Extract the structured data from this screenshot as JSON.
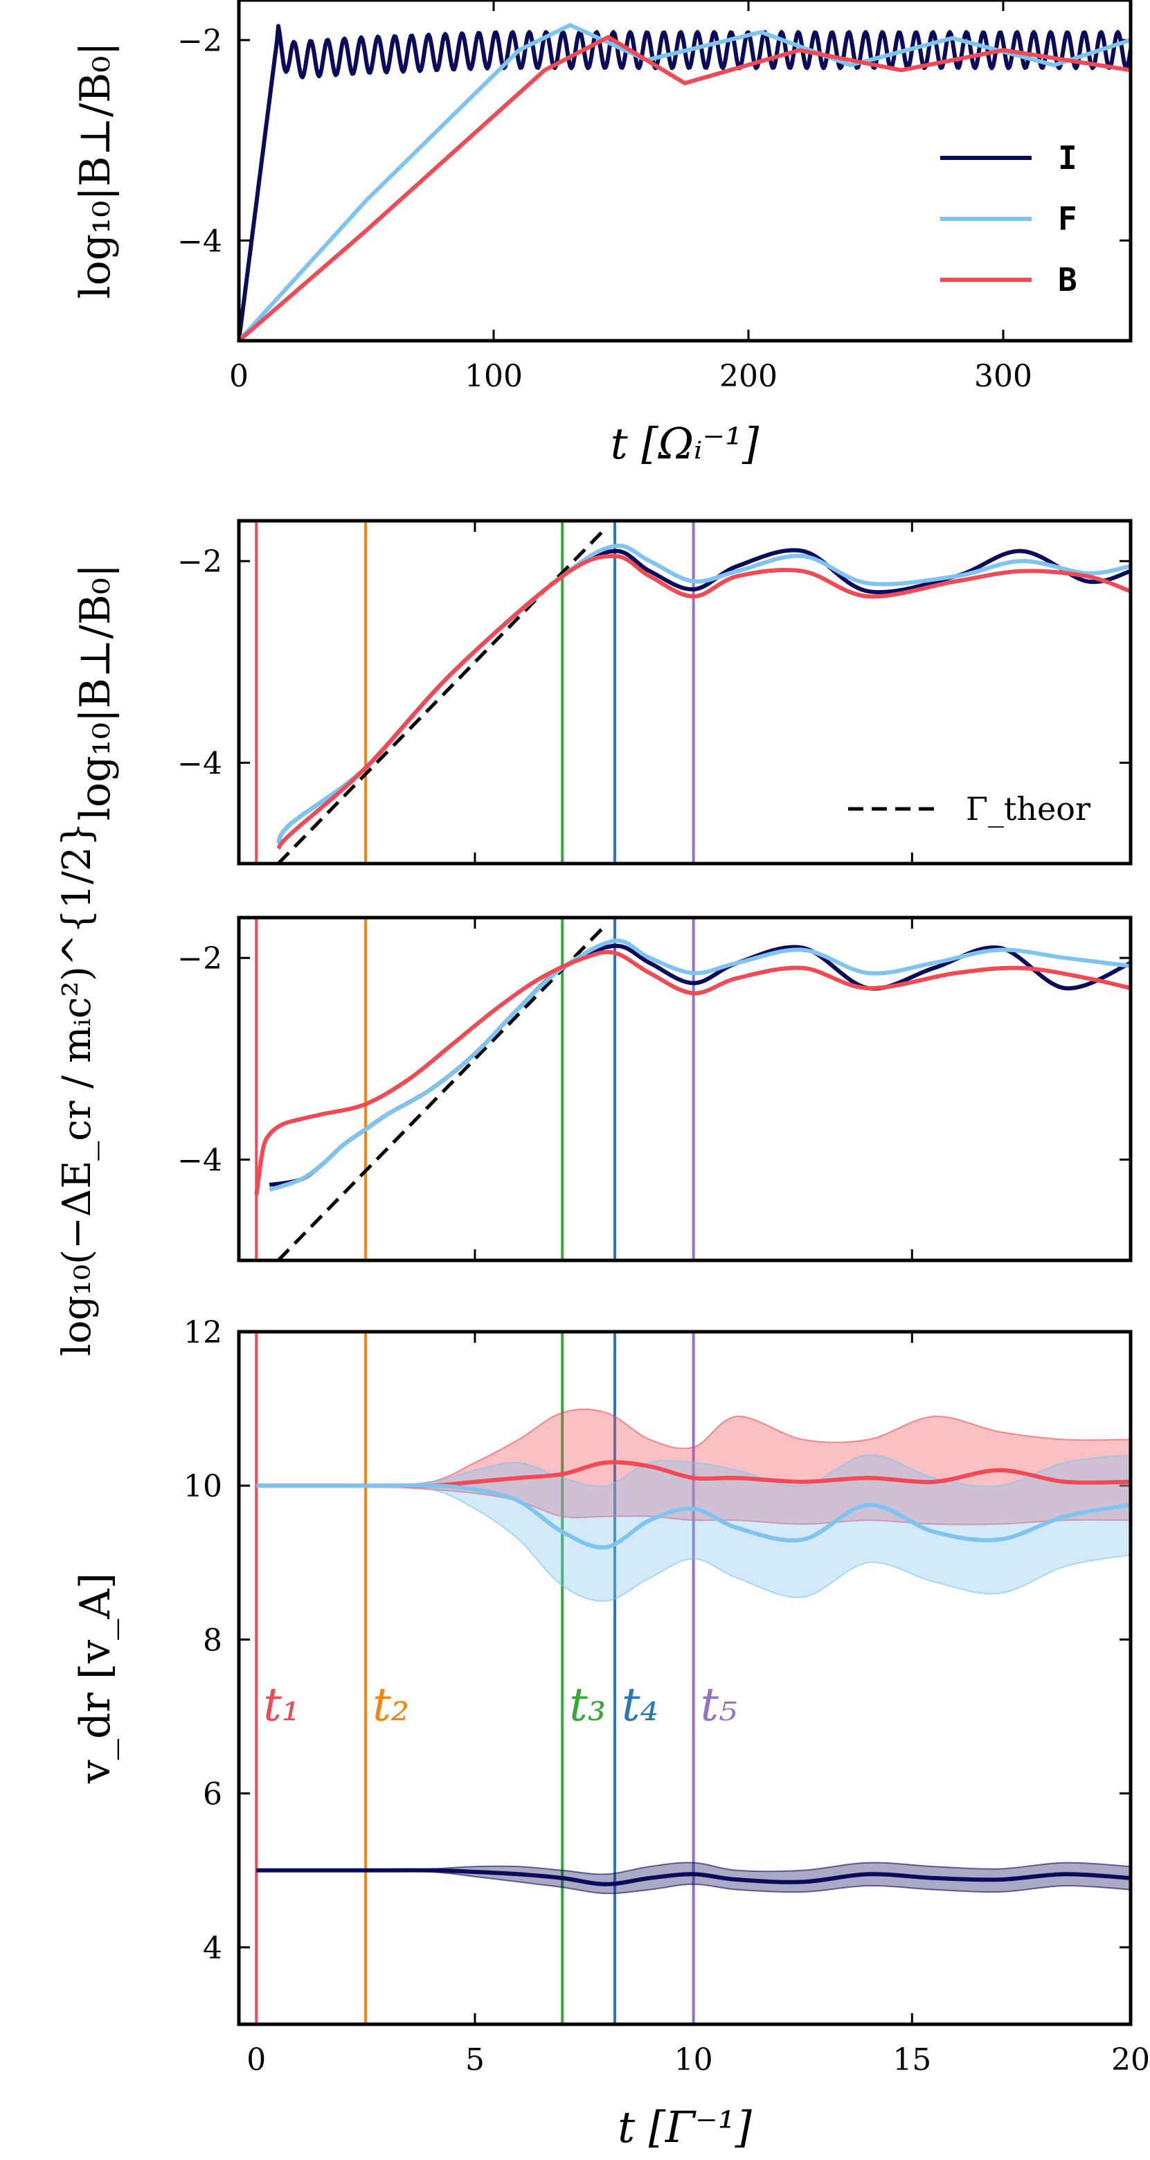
{
  "colors": {
    "I": "#0b0b5c",
    "F": "#7fc4f0",
    "B": "#f24a55",
    "t1": "#f24a55",
    "t2": "#f7830f",
    "t3": "#36a83a",
    "t4": "#2b78b3",
    "t5": "#9273c4",
    "theory": "#000000"
  },
  "chart_data": [
    {
      "type": "line",
      "panel": "top",
      "ylabel": "log₁₀|B⊥/B₀|",
      "xlabel": "t  [Ωᵢ⁻¹]",
      "xlim": [
        0,
        350
      ],
      "ylim": [
        -5,
        -1.6
      ],
      "xticks": [
        "0",
        "100",
        "200",
        "300"
      ],
      "yticks": [
        "−4",
        "−2"
      ],
      "legend": {
        "placement": "right",
        "entries": [
          "I",
          "F",
          "B"
        ]
      },
      "series": [
        {
          "name": "I",
          "x": [
            0,
            15,
            20,
            50,
            100,
            150,
            200,
            250,
            300,
            350
          ],
          "y": [
            -5,
            -2.0,
            -2.2,
            -2.15,
            -2.1,
            -2.1,
            -2.1,
            -2.1,
            -2.1,
            -2.1
          ]
        },
        {
          "name": "F",
          "x": [
            0,
            50,
            110,
            130,
            160,
            205,
            240,
            280,
            320,
            350
          ],
          "y": [
            -5,
            -3.6,
            -2.1,
            -1.85,
            -2.2,
            -1.92,
            -2.25,
            -1.98,
            -2.25,
            -2.0
          ]
        },
        {
          "name": "B",
          "x": [
            0,
            50,
            120,
            145,
            160,
            175,
            220,
            260,
            300,
            350
          ],
          "y": [
            -5,
            -3.9,
            -2.3,
            -1.97,
            -2.2,
            -2.43,
            -2.1,
            -2.3,
            -2.1,
            -2.3
          ]
        }
      ]
    },
    {
      "type": "line",
      "panel": "middle-1",
      "ylabel": "log₁₀|B⊥/B₀|",
      "xlim": [
        -0.4,
        20
      ],
      "ylim": [
        -5,
        -1.6
      ],
      "yticks": [
        "−4",
        "−2"
      ],
      "legend": {
        "placement": "bottom-right",
        "entries": [
          "Γ_theor"
        ]
      },
      "theory": {
        "x": [
          0.5,
          8.0
        ],
        "y": [
          -5.0,
          -1.67
        ]
      },
      "series": [
        {
          "name": "I",
          "x": [
            0.5,
            0.8,
            2.5,
            4.5,
            7.0,
            8.2,
            9.0,
            10.0,
            11.0,
            12.5,
            14.0,
            16.0,
            17.5,
            19.0,
            20.0
          ],
          "y": [
            -4.8,
            -4.6,
            -4.05,
            -3.1,
            -2.15,
            -1.9,
            -2.1,
            -2.28,
            -2.05,
            -1.9,
            -2.3,
            -2.15,
            -1.9,
            -2.2,
            -2.1
          ]
        },
        {
          "name": "F",
          "x": [
            0.5,
            0.8,
            2.5,
            4.5,
            7.0,
            8.2,
            9.0,
            10.0,
            11.0,
            12.5,
            14.0,
            16.0,
            17.5,
            19.0,
            20.0
          ],
          "y": [
            -4.8,
            -4.6,
            -4.05,
            -3.1,
            -2.15,
            -1.85,
            -2.0,
            -2.2,
            -2.1,
            -1.95,
            -2.22,
            -2.15,
            -2.0,
            -2.12,
            -2.05
          ]
        },
        {
          "name": "B",
          "x": [
            0.5,
            0.8,
            2.5,
            4.5,
            7.0,
            8.2,
            9.0,
            10.0,
            11.0,
            12.5,
            14.0,
            16.0,
            17.5,
            19.0,
            20.0
          ],
          "y": [
            -4.85,
            -4.7,
            -4.05,
            -3.1,
            -2.15,
            -1.95,
            -2.15,
            -2.35,
            -2.15,
            -2.1,
            -2.35,
            -2.2,
            -2.1,
            -2.15,
            -2.3
          ]
        }
      ]
    },
    {
      "type": "line",
      "panel": "middle-2",
      "ylabel": "log₁₀(−ΔE_cr / mᵢc²)^{1/2}",
      "xlim": [
        -0.4,
        20
      ],
      "ylim": [
        -5,
        -1.6
      ],
      "yticks": [
        "−4",
        "−2"
      ],
      "theory": {
        "x": [
          0.5,
          8.0
        ],
        "y": [
          -5.0,
          -1.67
        ]
      },
      "series": [
        {
          "name": "I",
          "x": [
            0.3,
            1.0,
            1.5,
            2.0,
            2.5,
            3.0,
            4.0,
            5.0,
            6.0,
            7.0,
            8.2,
            9.0,
            10.0,
            11.0,
            12.5,
            14.0,
            15.5,
            17.0,
            18.5,
            20.0
          ],
          "y": [
            -4.25,
            -4.2,
            -4.05,
            -3.85,
            -3.7,
            -3.55,
            -3.3,
            -2.95,
            -2.5,
            -2.1,
            -1.88,
            -2.05,
            -2.25,
            -2.05,
            -1.9,
            -2.3,
            -2.1,
            -1.9,
            -2.3,
            -2.05
          ]
        },
        {
          "name": "F",
          "x": [
            0.3,
            1.0,
            1.5,
            2.0,
            2.5,
            3.0,
            4.0,
            5.0,
            6.0,
            7.0,
            8.2,
            9.0,
            10.0,
            11.0,
            12.5,
            14.0,
            15.5,
            17.0,
            18.5,
            20.0
          ],
          "y": [
            -4.3,
            -4.2,
            -4.05,
            -3.85,
            -3.7,
            -3.55,
            -3.3,
            -2.95,
            -2.5,
            -2.1,
            -1.83,
            -2.0,
            -2.15,
            -2.05,
            -1.92,
            -2.15,
            -2.05,
            -1.92,
            -2.0,
            -2.08
          ]
        },
        {
          "name": "B",
          "x": [
            0.0,
            0.15,
            0.3,
            0.6,
            1.0,
            1.5,
            2.5,
            3.5,
            4.5,
            5.5,
            6.5,
            7.5,
            8.2,
            9.0,
            10.0,
            11.0,
            12.5,
            14.0,
            16.0,
            17.5,
            19.0,
            20.0
          ],
          "y": [
            -4.35,
            -3.9,
            -3.75,
            -3.65,
            -3.6,
            -3.55,
            -3.45,
            -3.2,
            -2.85,
            -2.5,
            -2.2,
            -2.0,
            -1.95,
            -2.15,
            -2.35,
            -2.2,
            -2.1,
            -2.3,
            -2.15,
            -2.1,
            -2.2,
            -2.3
          ]
        }
      ]
    },
    {
      "type": "area",
      "panel": "bottom",
      "ylabel": "v_dr  [v_A]",
      "xlabel": "t  [Γ⁻¹]",
      "xlim": [
        -0.4,
        20
      ],
      "ylim": [
        3,
        12
      ],
      "xticks": [
        "0",
        "5",
        "10",
        "15",
        "20"
      ],
      "yticks": [
        "4",
        "6",
        "8",
        "10",
        "12"
      ],
      "series": [
        {
          "name": "B",
          "x": [
            0,
            2.5,
            4.0,
            5.0,
            6.0,
            7.0,
            8.0,
            9.0,
            10.0,
            11.0,
            12.5,
            14.0,
            15.5,
            17.0,
            18.5,
            20.0
          ],
          "y": [
            10,
            10,
            10,
            10.05,
            10.1,
            10.15,
            10.3,
            10.25,
            10.1,
            10.1,
            10.05,
            10.1,
            10.05,
            10.2,
            10.05,
            10.05
          ],
          "upper": [
            10,
            10,
            10.05,
            10.3,
            10.6,
            10.95,
            10.95,
            10.6,
            10.5,
            10.9,
            10.6,
            10.6,
            10.9,
            10.7,
            10.6,
            10.6
          ],
          "lower": [
            10,
            10,
            9.95,
            9.9,
            9.8,
            9.6,
            9.6,
            9.6,
            9.55,
            9.55,
            9.5,
            9.55,
            9.5,
            9.5,
            9.55,
            9.55
          ]
        },
        {
          "name": "F",
          "x": [
            0,
            2.5,
            4.0,
            5.0,
            6.0,
            7.0,
            8.0,
            9.0,
            10.0,
            11.0,
            12.5,
            14.0,
            15.5,
            17.0,
            18.5,
            20.0
          ],
          "y": [
            10,
            10,
            10,
            9.95,
            9.8,
            9.4,
            9.2,
            9.55,
            9.7,
            9.45,
            9.3,
            9.75,
            9.4,
            9.3,
            9.6,
            9.75
          ],
          "upper": [
            10,
            10,
            10.05,
            10.2,
            10.3,
            10.1,
            10.0,
            10.3,
            10.3,
            10.2,
            10.0,
            10.4,
            10.1,
            10.0,
            10.3,
            10.4
          ],
          "lower": [
            10,
            10,
            9.95,
            9.7,
            9.3,
            8.7,
            8.5,
            8.8,
            9.05,
            8.8,
            8.55,
            9.0,
            8.75,
            8.6,
            8.95,
            9.1
          ]
        },
        {
          "name": "I",
          "x": [
            0,
            2.5,
            4.0,
            5.0,
            6.0,
            7.0,
            8.0,
            9.0,
            10.0,
            11.0,
            12.5,
            14.0,
            15.5,
            17.0,
            18.5,
            20.0
          ],
          "y": [
            5,
            5,
            5,
            4.98,
            4.95,
            4.9,
            4.82,
            4.9,
            4.95,
            4.88,
            4.85,
            4.95,
            4.9,
            4.88,
            4.95,
            4.9
          ],
          "upper": [
            5,
            5,
            5.02,
            5.05,
            5.05,
            5.0,
            4.95,
            5.05,
            5.1,
            5.0,
            5.0,
            5.1,
            5.05,
            5.02,
            5.1,
            5.05
          ],
          "lower": [
            5,
            5,
            4.98,
            4.92,
            4.85,
            4.78,
            4.7,
            4.75,
            4.82,
            4.75,
            4.72,
            4.8,
            4.75,
            4.72,
            4.8,
            4.75
          ]
        }
      ],
      "time_markers": [
        {
          "label": "t₁",
          "x": 0.0,
          "color_key": "t1"
        },
        {
          "label": "t₂",
          "x": 2.5,
          "color_key": "t2"
        },
        {
          "label": "t₃",
          "x": 7.0,
          "color_key": "t3"
        },
        {
          "label": "t₄",
          "x": 8.2,
          "color_key": "t4"
        },
        {
          "label": "t₅",
          "x": 10.0,
          "color_key": "t5"
        }
      ]
    }
  ]
}
